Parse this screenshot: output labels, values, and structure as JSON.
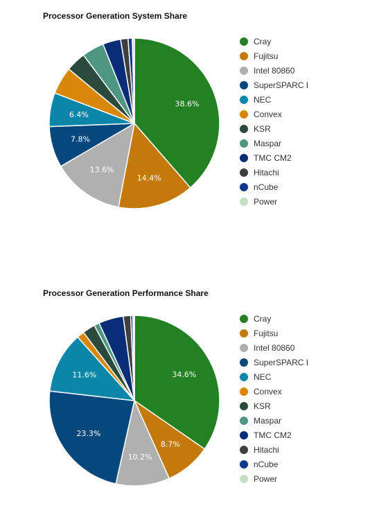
{
  "chart_data": [
    {
      "type": "pie",
      "title": "Processor Generation System Share",
      "legend_position": "right",
      "slices": [
        {
          "label": "Cray",
          "value": 38.6,
          "color": "#238023"
        },
        {
          "label": "Fujitsu",
          "value": 14.4,
          "color": "#c47a0b"
        },
        {
          "label": "Intel 80860",
          "value": 13.6,
          "color": "#b0b0b0"
        },
        {
          "label": "SuperSPARC I",
          "value": 7.8,
          "color": "#06477d"
        },
        {
          "label": "NEC",
          "value": 6.4,
          "color": "#0b86a8"
        },
        {
          "label": "Convex",
          "value": 5.2,
          "color": "#d98708"
        },
        {
          "label": "KSR",
          "value": 3.8,
          "color": "#2b4a3c"
        },
        {
          "label": "Maspar",
          "value": 4.2,
          "color": "#4d9782"
        },
        {
          "label": "TMC CM2",
          "value": 3.4,
          "color": "#0a2d78"
        },
        {
          "label": "Hitachi",
          "value": 1.4,
          "color": "#3f3f3f"
        },
        {
          "label": "nCube",
          "value": 0.8,
          "color": "#0b3a8c"
        },
        {
          "label": "Power",
          "value": 0.4,
          "color": "#c4e0c4"
        }
      ],
      "data_labels": [
        "38.6%",
        "14.4%",
        "13.6%",
        "7.8%",
        "6.4%"
      ]
    },
    {
      "type": "pie",
      "title": "Processor Generation Performance Share",
      "legend_position": "right",
      "slices": [
        {
          "label": "Cray",
          "value": 34.6,
          "color": "#238023"
        },
        {
          "label": "Fujitsu",
          "value": 8.7,
          "color": "#c47a0b"
        },
        {
          "label": "Intel 80860",
          "value": 10.2,
          "color": "#b0b0b0"
        },
        {
          "label": "SuperSPARC I",
          "value": 23.3,
          "color": "#06477d"
        },
        {
          "label": "NEC",
          "value": 11.6,
          "color": "#0b86a8"
        },
        {
          "label": "Convex",
          "value": 1.4,
          "color": "#d98708"
        },
        {
          "label": "KSR",
          "value": 2.4,
          "color": "#2b4a3c"
        },
        {
          "label": "Maspar",
          "value": 1.0,
          "color": "#4d9782"
        },
        {
          "label": "TMC CM2",
          "value": 4.7,
          "color": "#0a2d78"
        },
        {
          "label": "Hitachi",
          "value": 1.4,
          "color": "#3f3f3f"
        },
        {
          "label": "nCube",
          "value": 0.4,
          "color": "#0b3a8c"
        },
        {
          "label": "Power",
          "value": 0.3,
          "color": "#c4e0c4"
        }
      ],
      "data_labels": [
        "34.6%",
        "8.7%",
        "10.2%",
        "23.3%",
        "11.6%"
      ]
    }
  ]
}
